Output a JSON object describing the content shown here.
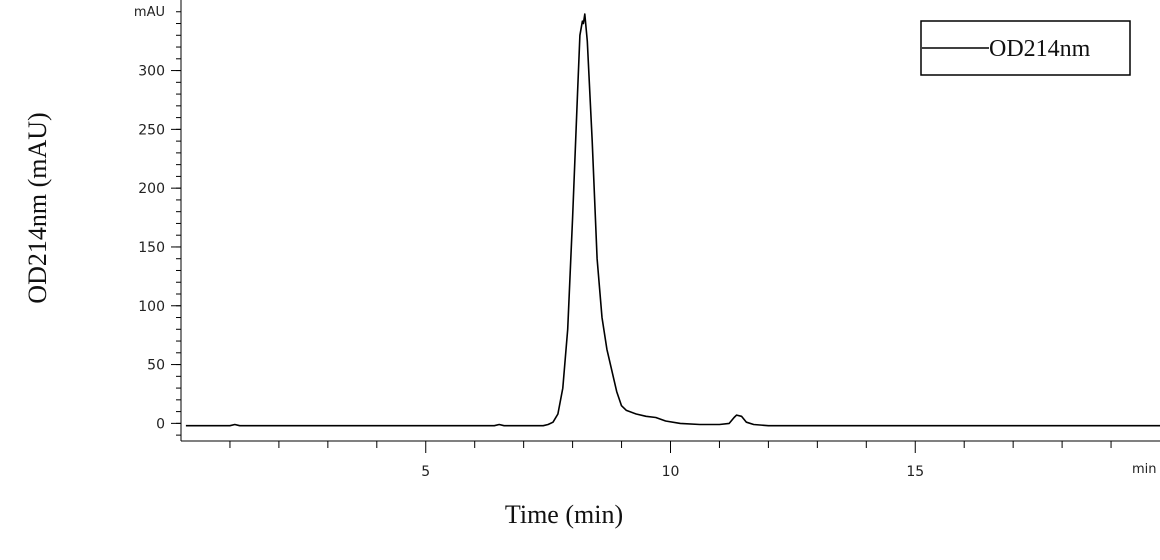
{
  "chart_data": {
    "type": "line",
    "xlabel": "Time (min)",
    "ylabel": "OD214nm (mAU)",
    "x_unit_label": "min",
    "y_unit_label": "mAU",
    "xlim": [
      0,
      20
    ],
    "ylim": [
      -15,
      360
    ],
    "x_major_ticks": [
      5,
      10,
      15
    ],
    "y_major_ticks": [
      0,
      50,
      100,
      150,
      200,
      250,
      300
    ],
    "grid": false,
    "legend_position": "top-right",
    "series": [
      {
        "name": "OD214nm",
        "color": "#000000",
        "points": [
          [
            0.1,
            -2
          ],
          [
            1.0,
            -2
          ],
          [
            1.1,
            -1
          ],
          [
            1.2,
            -2
          ],
          [
            3.0,
            -2
          ],
          [
            5.0,
            -2
          ],
          [
            6.4,
            -2
          ],
          [
            6.5,
            -1
          ],
          [
            6.6,
            -2
          ],
          [
            7.0,
            -2
          ],
          [
            7.4,
            -2
          ],
          [
            7.5,
            -1
          ],
          [
            7.6,
            1
          ],
          [
            7.7,
            8
          ],
          [
            7.8,
            30
          ],
          [
            7.9,
            80
          ],
          [
            8.0,
            175
          ],
          [
            8.1,
            280
          ],
          [
            8.15,
            330
          ],
          [
            8.2,
            342
          ],
          [
            8.22,
            340
          ],
          [
            8.25,
            348
          ],
          [
            8.3,
            325
          ],
          [
            8.4,
            240
          ],
          [
            8.5,
            140
          ],
          [
            8.6,
            90
          ],
          [
            8.7,
            63
          ],
          [
            8.8,
            45
          ],
          [
            8.9,
            27
          ],
          [
            9.0,
            15
          ],
          [
            9.1,
            11
          ],
          [
            9.3,
            8
          ],
          [
            9.5,
            6
          ],
          [
            9.7,
            5
          ],
          [
            9.9,
            2
          ],
          [
            10.2,
            0
          ],
          [
            10.6,
            -1
          ],
          [
            11.0,
            -1
          ],
          [
            11.2,
            0
          ],
          [
            11.3,
            5
          ],
          [
            11.35,
            7
          ],
          [
            11.45,
            6
          ],
          [
            11.55,
            1
          ],
          [
            11.7,
            -1
          ],
          [
            12.0,
            -2
          ],
          [
            15.0,
            -2
          ],
          [
            20.0,
            -2
          ]
        ]
      }
    ]
  }
}
